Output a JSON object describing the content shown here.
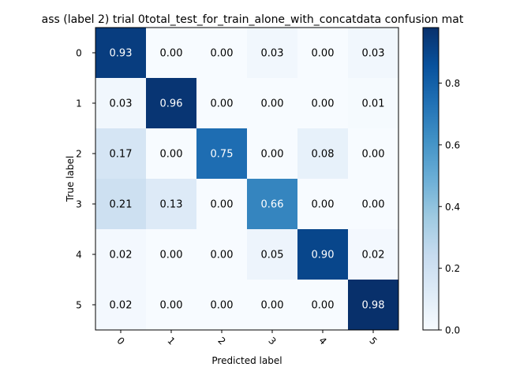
{
  "chart_data": {
    "type": "heatmap",
    "title": "ass (label 2) trial 0total_test_for_train_alone_with_concatdata confusion mat",
    "xlabel": "Predicted label",
    "ylabel": "True label",
    "x_tick_labels": [
      "0",
      "1",
      "2",
      "3",
      "4",
      "5"
    ],
    "y_tick_labels": [
      "0",
      "1",
      "2",
      "3",
      "4",
      "5"
    ],
    "values": [
      [
        0.93,
        0.0,
        0.0,
        0.03,
        0.0,
        0.03
      ],
      [
        0.03,
        0.96,
        0.0,
        0.0,
        0.0,
        0.01
      ],
      [
        0.17,
        0.0,
        0.75,
        0.0,
        0.08,
        0.0
      ],
      [
        0.21,
        0.13,
        0.0,
        0.66,
        0.0,
        0.0
      ],
      [
        0.02,
        0.0,
        0.0,
        0.05,
        0.9,
        0.02
      ],
      [
        0.02,
        0.0,
        0.0,
        0.0,
        0.0,
        0.98
      ]
    ],
    "colormap": "Blues",
    "colorbar": {
      "range": [
        0.0,
        0.98
      ],
      "ticks": [
        0.0,
        0.2,
        0.4,
        0.6,
        0.8
      ],
      "tick_labels": [
        "0.0",
        "0.2",
        "0.4",
        "0.6",
        "0.8"
      ]
    },
    "text_color_dark": "#000000",
    "text_color_light": "#ffffff"
  }
}
